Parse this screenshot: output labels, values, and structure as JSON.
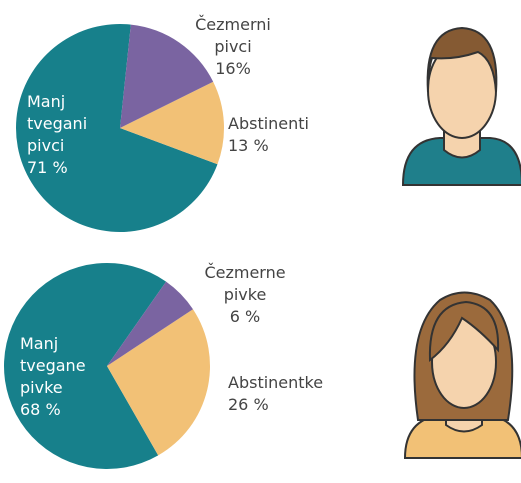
{
  "chart_data": [
    {
      "type": "pie",
      "categories": [
        "Čezmerni pivci",
        "Abstinenti",
        "Manj tvegani pivci"
      ],
      "values": [
        16,
        13,
        71
      ],
      "value_labels": [
        "16%",
        "13 %",
        "71 %"
      ],
      "colors": [
        "#7a64a1",
        "#f2c176",
        "#17808b"
      ]
    },
    {
      "type": "pie",
      "categories": [
        "Čezmerne pivke",
        "Abstinentke",
        "Manj tvegane pivke"
      ],
      "values": [
        6,
        26,
        68
      ],
      "value_labels": [
        "6 %",
        "26 %",
        "68 %"
      ],
      "colors": [
        "#7a64a1",
        "#f2c176",
        "#17808b"
      ]
    }
  ]
}
